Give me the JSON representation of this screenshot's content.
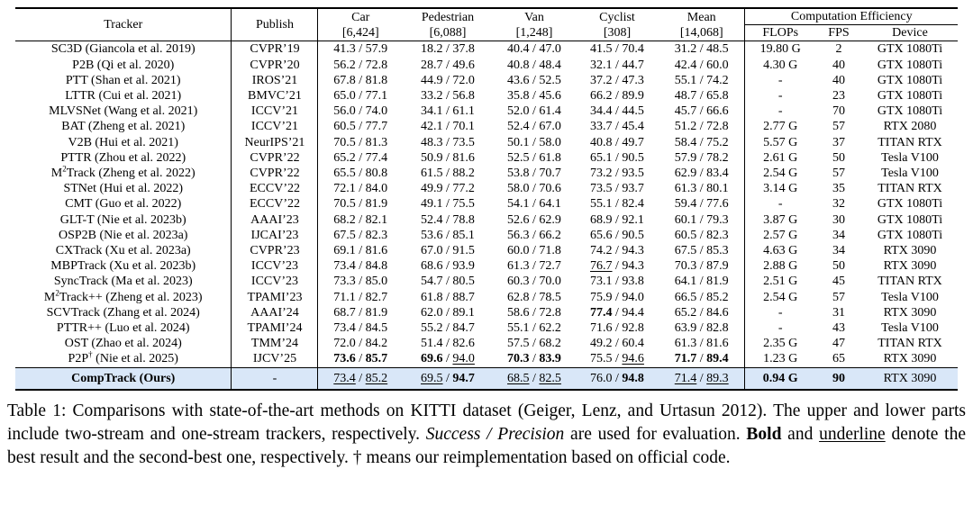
{
  "table": {
    "header": {
      "tracker_label": "Tracker",
      "publish_label": "Publish",
      "categories": [
        {
          "name": "Car",
          "count": "[6,424]"
        },
        {
          "name": "Pedestrian",
          "count": "[6,088]"
        },
        {
          "name": "Van",
          "count": "[1,248]"
        },
        {
          "name": "Cyclist",
          "count": "[308]"
        },
        {
          "name": "Mean",
          "count": "[14,068]"
        }
      ],
      "efficiency_group_label": "Computation Efficiency",
      "efficiency_columns": [
        "FLOPs",
        "FPS",
        "Device"
      ]
    },
    "rows": [
      {
        "tracker": "SC3D (Giancola et al. 2019)",
        "publish": "CVPR’19",
        "car": "41.3 / 57.9",
        "pedestrian": "18.2 / 37.8",
        "van": "40.4 / 47.0",
        "cyclist": "41.5 / 70.4",
        "mean": "31.2 / 48.5",
        "flops": "19.80 G",
        "fps": "2",
        "device": "GTX 1080Ti"
      },
      {
        "tracker": "P2B (Qi et al. 2020)",
        "publish": "CVPR’20",
        "car": "56.2 / 72.8",
        "pedestrian": "28.7 / 49.6",
        "van": "40.8 / 48.4",
        "cyclist": "32.1 / 44.7",
        "mean": "42.4 / 60.0",
        "flops": "4.30 G",
        "fps": "40",
        "device": "GTX 1080Ti"
      },
      {
        "tracker": "PTT (Shan et al. 2021)",
        "publish": "IROS’21",
        "car": "67.8 / 81.8",
        "pedestrian": "44.9 / 72.0",
        "van": "43.6 / 52.5",
        "cyclist": "37.2 / 47.3",
        "mean": "55.1 / 74.2",
        "flops": "-",
        "fps": "40",
        "device": "GTX 1080Ti"
      },
      {
        "tracker": "LTTR (Cui et al. 2021)",
        "publish": "BMVC’21",
        "car": "65.0 / 77.1",
        "pedestrian": "33.2 / 56.8",
        "van": "35.8 / 45.6",
        "cyclist": "66.2 / 89.9",
        "mean": "48.7 / 65.8",
        "flops": "-",
        "fps": "23",
        "device": "GTX 1080Ti"
      },
      {
        "tracker": "MLVSNet (Wang et al. 2021)",
        "publish": "ICCV’21",
        "car": "56.0 / 74.0",
        "pedestrian": "34.1 / 61.1",
        "van": "52.0 / 61.4",
        "cyclist": "34.4 / 44.5",
        "mean": "45.7 / 66.6",
        "flops": "-",
        "fps": "70",
        "device": "GTX 1080Ti"
      },
      {
        "tracker": "BAT (Zheng et al. 2021)",
        "publish": "ICCV’21",
        "car": "60.5 / 77.7",
        "pedestrian": "42.1 / 70.1",
        "van": "52.4 / 67.0",
        "cyclist": "33.7 / 45.4",
        "mean": "51.2 / 72.8",
        "flops": "2.77 G",
        "fps": "57",
        "device": "RTX 2080"
      },
      {
        "tracker": "V2B (Hui et al. 2021)",
        "publish": "NeurIPS’21",
        "car": "70.5 / 81.3",
        "pedestrian": "48.3 / 73.5",
        "van": "50.1 / 58.0",
        "cyclist": "40.8 / 49.7",
        "mean": "58.4 / 75.2",
        "flops": "5.57 G",
        "fps": "37",
        "device": "TITAN RTX"
      },
      {
        "tracker": "PTTR (Zhou et al. 2022)",
        "publish": "CVPR’22",
        "car": "65.2 / 77.4",
        "pedestrian": "50.9 / 81.6",
        "van": "52.5 / 61.8",
        "cyclist": "65.1 / 90.5",
        "mean": "57.9 / 78.2",
        "flops": "2.61 G",
        "fps": "50",
        "device": "Tesla V100"
      },
      {
        "tracker": "M^{2}Track (Zheng et al. 2022)",
        "publish": "CVPR’22",
        "car": "65.5 / 80.8",
        "pedestrian": "61.5 / 88.2",
        "van": "53.8 / 70.7",
        "cyclist": "73.2 / 93.5",
        "mean": "62.9 / 83.4",
        "flops": "2.54 G",
        "fps": "57",
        "device": "Tesla V100"
      },
      {
        "tracker": "STNet (Hui et al. 2022)",
        "publish": "ECCV’22",
        "car": "72.1 / 84.0",
        "pedestrian": "49.9 / 77.2",
        "van": "58.0 / 70.6",
        "cyclist": "73.5 / 93.7",
        "mean": "61.3 / 80.1",
        "flops": "3.14 G",
        "fps": "35",
        "device": "TITAN RTX"
      },
      {
        "tracker": "CMT (Guo et al. 2022)",
        "publish": "ECCV’22",
        "car": "70.5 / 81.9",
        "pedestrian": "49.1 / 75.5",
        "van": "54.1 / 64.1",
        "cyclist": "55.1 / 82.4",
        "mean": "59.4 / 77.6",
        "flops": "-",
        "fps": "32",
        "device": "GTX 1080Ti"
      },
      {
        "tracker": "GLT-T (Nie et al. 2023b)",
        "publish": "AAAI’23",
        "car": "68.2 / 82.1",
        "pedestrian": "52.4 / 78.8",
        "van": "52.6 / 62.9",
        "cyclist": "68.9 / 92.1",
        "mean": "60.1 / 79.3",
        "flops": "3.87 G",
        "fps": "30",
        "device": "GTX 1080Ti"
      },
      {
        "tracker": "OSP2B (Nie et al. 2023a)",
        "publish": "IJCAI’23",
        "car": "67.5 / 82.3",
        "pedestrian": "53.6 / 85.1",
        "van": "56.3 / 66.2",
        "cyclist": "65.6 / 90.5",
        "mean": "60.5 / 82.3",
        "flops": "2.57 G",
        "fps": "34",
        "device": "GTX 1080Ti"
      },
      {
        "tracker": "CXTrack (Xu et al. 2023a)",
        "publish": "CVPR’23",
        "car": "69.1 / 81.6",
        "pedestrian": "67.0 / 91.5",
        "van": "60.0 / 71.8",
        "cyclist": "74.2 / 94.3",
        "mean": "67.5 / 85.3",
        "flops": "4.63 G",
        "fps": "34",
        "device": "RTX 3090"
      },
      {
        "tracker": "MBPTrack (Xu et al. 2023b)",
        "publish": "ICCV’23",
        "car": "73.4 / 84.8",
        "pedestrian": "68.6 / 93.9",
        "van": "61.3 / 72.7",
        "cyclist": "__76.7__ / 94.3",
        "mean": "70.3 / 87.9",
        "flops": "2.88 G",
        "fps": "50",
        "device": "RTX 3090"
      },
      {
        "tracker": "SyncTrack (Ma et al. 2023)",
        "publish": "ICCV’23",
        "car": "73.3 / 85.0",
        "pedestrian": "54.7 / 80.5",
        "van": "60.3 / 70.0",
        "cyclist": "73.1 / 93.8",
        "mean": "64.1 / 81.9",
        "flops": "2.51 G",
        "fps": "45",
        "device": "TITAN RTX"
      },
      {
        "tracker": "M^{2}Track++ (Zheng et al. 2023)",
        "publish": "TPAMI’23",
        "car": "71.1 / 82.7",
        "pedestrian": "61.8 / 88.7",
        "van": "62.8 / 78.5",
        "cyclist": "75.9 / 94.0",
        "mean": "66.5 / 85.2",
        "flops": "2.54 G",
        "fps": "57",
        "device": "Tesla V100"
      },
      {
        "tracker": "SCVTrack (Zhang et al. 2024)",
        "publish": "AAAI’24",
        "car": "68.7 / 81.9",
        "pedestrian": "62.0 / 89.1",
        "van": "58.6 / 72.8",
        "cyclist": "**77.4** / 94.4",
        "mean": "65.2 / 84.6",
        "flops": "-",
        "fps": "31",
        "device": "RTX 3090"
      },
      {
        "tracker": "PTTR++ (Luo et al. 2024)",
        "publish": "TPAMI’24",
        "car": "73.4 / 84.5",
        "pedestrian": "55.2 / 84.7",
        "van": "55.1 / 62.2",
        "cyclist": "71.6 / 92.8",
        "mean": "63.9 / 82.8",
        "flops": "-",
        "fps": "43",
        "device": "Tesla V100"
      },
      {
        "tracker": "OST (Zhao et al. 2024)",
        "publish": "TMM’24",
        "car": "72.0 / 84.2",
        "pedestrian": "51.4 / 82.6",
        "van": "57.5 / 68.2",
        "cyclist": "49.2 / 60.4",
        "mean": "61.3 / 81.6",
        "flops": "2.35 G",
        "fps": "47",
        "device": "TITAN RTX"
      },
      {
        "tracker": "P2P^{†} (Nie et al. 2025)",
        "publish": "IJCV’25",
        "car": "**73.6** / **85.7**",
        "pedestrian": "**69.6** / __94.0__",
        "van": "**70.3** / **83.9**",
        "cyclist": "75.5 / __94.6__",
        "mean": "**71.7** / **89.4**",
        "flops": "1.23 G",
        "fps": "65",
        "device": "RTX 3090"
      }
    ],
    "ours_row": {
      "tracker": "**CompTrack (Ours)**",
      "publish": "-",
      "car": "__73.4__ / __85.2__",
      "pedestrian": "__69.5__ / **94.7**",
      "van": "__68.5__ / __82.5__",
      "cyclist": "76.0 / **94.8**",
      "mean": "__71.4__ / __89.3__",
      "flops": "**0.94 G**",
      "fps": "**90**",
      "device": "RTX 3090"
    }
  },
  "caption": {
    "text": "Table 1: Comparisons with state-of-the-art methods on KITTI dataset (Geiger, Lenz, and Urtasun 2012). The upper and lower parts include two-stream and one-stream trackers, respectively. *Success / Precision* are used for evaluation. **Bold** and __underline__ denote the best result and the second-best one, respectively. † means our reimplementation based on official code."
  },
  "colors": {
    "highlight_row": "#d9e7f8",
    "rule": "#000000"
  }
}
